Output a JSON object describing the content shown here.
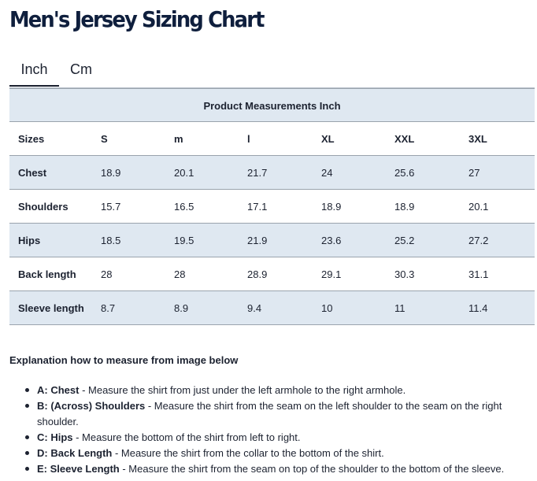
{
  "page": {
    "title": "Men's Jersey Sizing Chart"
  },
  "tabs": [
    {
      "label": "Inch",
      "active": true
    },
    {
      "label": "Cm",
      "active": false
    }
  ],
  "table": {
    "caption": "Product Measurements Inch",
    "headers": [
      "Sizes",
      "S",
      "m",
      "l",
      "XL",
      "XXL",
      "3XL"
    ],
    "rows": [
      {
        "label": "Chest",
        "values": [
          "18.9",
          "20.1",
          "21.7",
          "24",
          "25.6",
          "27"
        ]
      },
      {
        "label": "Shoulders",
        "values": [
          "15.7",
          "16.5",
          "17.1",
          "18.9",
          "18.9",
          "20.1"
        ]
      },
      {
        "label": "Hips",
        "values": [
          "18.5",
          "19.5",
          "21.9",
          "23.6",
          "25.2",
          "27.2"
        ]
      },
      {
        "label": "Back length",
        "values": [
          "28",
          "28",
          "28.9",
          "29.1",
          "30.3",
          "31.1"
        ]
      },
      {
        "label": "Sleeve length",
        "values": [
          "8.7",
          "8.9",
          "9.4",
          "10",
          "11",
          "11.4"
        ]
      }
    ]
  },
  "explanation": {
    "title": "Explanation how to measure from image below",
    "items": [
      {
        "term": "A: Chest",
        "text": " - Measure the shirt from just under the left armhole to the right armhole."
      },
      {
        "term": "B: (Across) Shoulders",
        "text": " - Measure the shirt from the seam on the left shoulder to the seam on the right shoulder."
      },
      {
        "term": "C: Hips",
        "text": " - Measure the bottom of the shirt from left to right."
      },
      {
        "term": "D: Back Length",
        "text": " - Measure the shirt from the collar to the bottom of the shirt."
      },
      {
        "term": "E: Sleeve Length",
        "text": " - Measure the shirt from the seam on top of the shoulder to the bottom of the sleeve."
      }
    ]
  }
}
